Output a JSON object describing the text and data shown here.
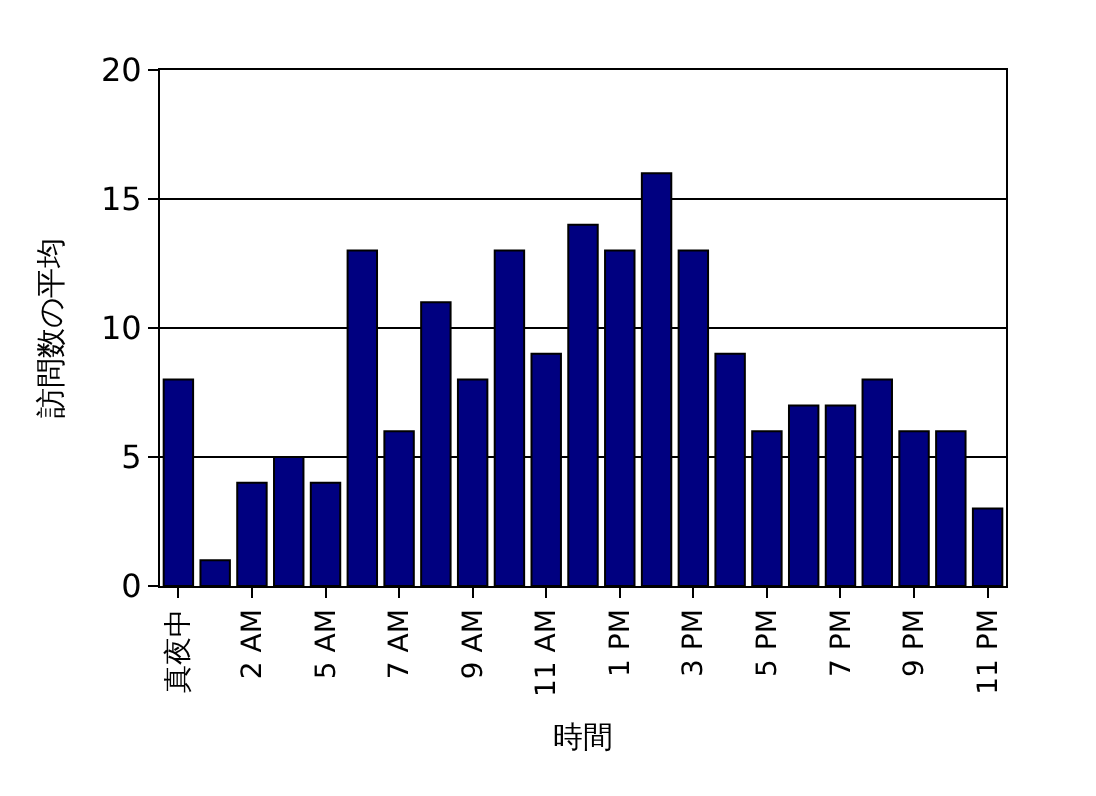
{
  "chart_data": {
    "type": "bar",
    "xlabel": "時間",
    "ylabel": "訪問数の平均",
    "categories": [
      "真夜中",
      null,
      "2 AM",
      null,
      "5 AM",
      null,
      "7 AM",
      null,
      "9 AM",
      null,
      "11 AM",
      null,
      "1 PM",
      null,
      "3 PM",
      null,
      "5 PM",
      null,
      "7 PM",
      null,
      "9 PM",
      null,
      "11 PM"
    ],
    "values": [
      8,
      1,
      4,
      5,
      4,
      13,
      6,
      11,
      8,
      13,
      9,
      14,
      13,
      16,
      13,
      9,
      6,
      7,
      7,
      8,
      6,
      6,
      3
    ],
    "color": "#000080",
    "ylim": [
      0,
      20
    ],
    "yticks": [
      0,
      5,
      10,
      15,
      20
    ],
    "grid": "y"
  }
}
